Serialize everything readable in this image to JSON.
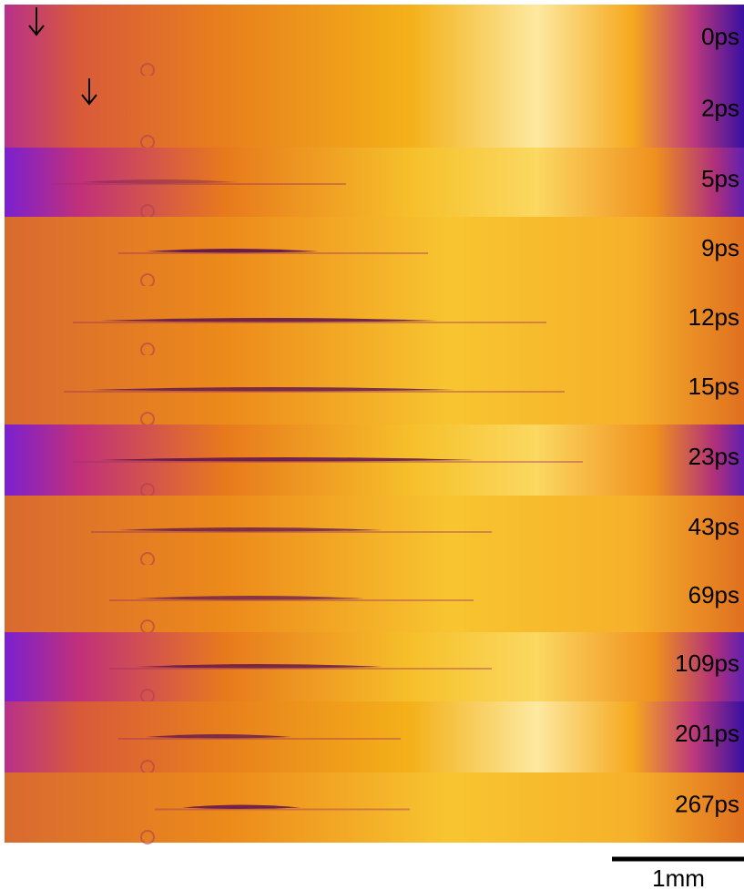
{
  "panels": [
    {
      "label": "0ps"
    },
    {
      "label": "2ps"
    },
    {
      "label": "5ps"
    },
    {
      "label": "9ps"
    },
    {
      "label": "12ps"
    },
    {
      "label": "15ps"
    },
    {
      "label": "23ps"
    },
    {
      "label": "43ps"
    },
    {
      "label": "69ps"
    },
    {
      "label": "109ps"
    },
    {
      "label": "201ps"
    },
    {
      "label": "267ps"
    }
  ],
  "scale_bar": {
    "label": "1mm"
  }
}
